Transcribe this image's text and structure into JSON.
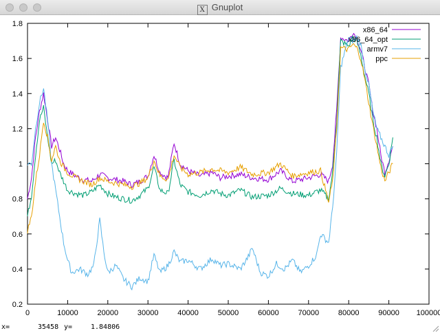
{
  "window": {
    "title": "Gnuplot"
  },
  "status": {
    "x_label": "x=",
    "x_value": "35458",
    "y_label": "y=",
    "y_value": "1.84806"
  },
  "chart_data": {
    "type": "line",
    "title": "",
    "xlabel": "",
    "ylabel": "",
    "xlim": [
      0,
      100000
    ],
    "ylim": [
      0.2,
      1.8
    ],
    "x_ticks": [
      0,
      10000,
      20000,
      30000,
      40000,
      50000,
      60000,
      70000,
      80000,
      90000,
      100000
    ],
    "y_ticks": [
      0.2,
      0.4,
      0.6,
      0.8,
      1,
      1.2,
      1.4,
      1.6,
      1.8
    ],
    "x_tick_labels": [
      "0",
      "10000",
      "20000",
      "30000",
      "40000",
      "50000",
      "60000",
      "70000",
      "80000",
      "90000",
      "100000"
    ],
    "y_tick_labels": [
      "0.2",
      "0.4",
      "0.6",
      "0.8",
      "1",
      "1.2",
      "1.4",
      "1.6",
      "1.8"
    ],
    "grid": false,
    "legend_position": "top-right",
    "series": [
      {
        "name": "x86_64",
        "color": "#9400d3",
        "x": [
          0,
          1000,
          2000,
          3000,
          4000,
          5000,
          6000,
          7000,
          8000,
          9000,
          10000,
          12000,
          14000,
          16000,
          18000,
          20000,
          22000,
          24000,
          26000,
          28000,
          30000,
          31500,
          33000,
          35000,
          36500,
          38000,
          40000,
          43000,
          46000,
          48000,
          50000,
          53000,
          56000,
          60000,
          63000,
          66000,
          70000,
          73000,
          75000,
          76000,
          77000,
          78000,
          80000,
          81000,
          82000,
          83000,
          84000,
          85000,
          86000,
          87000,
          88000,
          89000,
          90000,
          91000
        ],
        "y": [
          0.8,
          0.92,
          1.15,
          1.3,
          1.4,
          1.25,
          1.1,
          1.15,
          1.08,
          1.0,
          0.96,
          0.93,
          0.91,
          0.9,
          0.94,
          0.92,
          0.91,
          0.9,
          0.88,
          0.9,
          0.93,
          1.05,
          0.95,
          0.92,
          1.12,
          1.0,
          0.96,
          0.93,
          0.95,
          0.92,
          0.93,
          0.94,
          0.92,
          0.91,
          0.96,
          0.9,
          0.92,
          0.94,
          0.9,
          1.0,
          1.3,
          1.72,
          1.7,
          1.75,
          1.72,
          1.65,
          1.55,
          1.45,
          1.3,
          1.2,
          1.05,
          0.95,
          1.02,
          1.1
        ]
      },
      {
        "name": "x86_64_opt",
        "color": "#009e73",
        "x": [
          0,
          1000,
          2000,
          3000,
          4000,
          5000,
          6000,
          7000,
          8000,
          9000,
          10000,
          12000,
          14000,
          16000,
          18000,
          20000,
          22000,
          24000,
          26000,
          28000,
          30000,
          31500,
          33000,
          35000,
          36500,
          38000,
          40000,
          43000,
          46000,
          48000,
          50000,
          53000,
          56000,
          60000,
          63000,
          66000,
          70000,
          73000,
          75000,
          76000,
          77000,
          78000,
          80000,
          81000,
          82000,
          83000,
          84000,
          85000,
          86000,
          87000,
          88000,
          89000,
          90000,
          91000
        ],
        "y": [
          0.7,
          0.82,
          1.05,
          1.25,
          1.32,
          1.15,
          1.0,
          1.02,
          0.95,
          0.9,
          0.85,
          0.83,
          0.82,
          0.84,
          0.88,
          0.83,
          0.81,
          0.8,
          0.79,
          0.82,
          0.86,
          0.98,
          0.85,
          0.83,
          1.02,
          0.88,
          0.84,
          0.82,
          0.85,
          0.83,
          0.82,
          0.85,
          0.81,
          0.82,
          0.86,
          0.83,
          0.82,
          0.85,
          0.8,
          0.95,
          1.25,
          1.7,
          1.67,
          1.72,
          1.7,
          1.62,
          1.5,
          1.4,
          1.25,
          1.15,
          1.0,
          0.93,
          1.0,
          1.15
        ]
      },
      {
        "name": "armv7",
        "color": "#56b4e9",
        "x": [
          0,
          1000,
          2000,
          3000,
          4000,
          5000,
          6000,
          7000,
          8000,
          9000,
          10000,
          11000,
          13000,
          15000,
          16500,
          18000,
          19000,
          20000,
          22000,
          24000,
          26000,
          28000,
          30000,
          31500,
          33000,
          35000,
          36500,
          38000,
          40000,
          43000,
          46000,
          48000,
          50000,
          53000,
          55000,
          56000,
          58000,
          60000,
          62000,
          64000,
          66000,
          68000,
          70000,
          72000,
          73000,
          75000,
          76000,
          77000,
          78000,
          80000,
          81000,
          82000,
          83000,
          84000,
          85000,
          86000,
          87000,
          88000,
          89000,
          90000,
          91000
        ],
        "y": [
          1.0,
          1.0,
          1.2,
          1.35,
          1.43,
          1.25,
          1.0,
          0.85,
          0.7,
          0.55,
          0.45,
          0.38,
          0.4,
          0.37,
          0.42,
          0.68,
          0.5,
          0.38,
          0.42,
          0.34,
          0.3,
          0.35,
          0.33,
          0.48,
          0.38,
          0.42,
          0.5,
          0.44,
          0.45,
          0.4,
          0.46,
          0.42,
          0.43,
          0.4,
          0.47,
          0.52,
          0.38,
          0.36,
          0.43,
          0.4,
          0.45,
          0.38,
          0.42,
          0.48,
          0.6,
          0.55,
          0.75,
          1.05,
          1.55,
          1.72,
          1.7,
          1.72,
          1.68,
          1.55,
          1.45,
          1.3,
          1.2,
          1.15,
          1.1,
          1.05,
          1.1
        ]
      },
      {
        "name": "ppc",
        "color": "#e69f00",
        "x": [
          0,
          1000,
          2000,
          3000,
          4000,
          5000,
          6000,
          7000,
          8000,
          9000,
          10000,
          12000,
          14000,
          16000,
          18000,
          20000,
          22000,
          24000,
          26000,
          28000,
          30000,
          31500,
          33000,
          35000,
          36500,
          38000,
          40000,
          43000,
          46000,
          48000,
          50000,
          53000,
          56000,
          60000,
          63000,
          66000,
          70000,
          73000,
          75000,
          76000,
          77000,
          78000,
          80000,
          81000,
          82000,
          83000,
          84000,
          85000,
          86000,
          87000,
          88000,
          89000,
          90000,
          91000
        ],
        "y": [
          0.62,
          0.7,
          0.9,
          1.05,
          1.25,
          1.15,
          1.02,
          1.1,
          1.02,
          0.98,
          0.95,
          0.92,
          0.9,
          0.88,
          0.92,
          0.9,
          0.89,
          0.88,
          0.87,
          0.89,
          0.92,
          1.02,
          0.93,
          0.91,
          1.05,
          0.98,
          0.94,
          0.95,
          0.97,
          0.96,
          0.95,
          0.98,
          0.94,
          0.95,
          1.0,
          0.93,
          0.95,
          0.96,
          0.78,
          0.9,
          1.2,
          1.66,
          1.65,
          1.68,
          1.66,
          1.6,
          1.48,
          1.35,
          1.22,
          1.1,
          0.98,
          0.9,
          0.95,
          1.0
        ]
      }
    ]
  }
}
